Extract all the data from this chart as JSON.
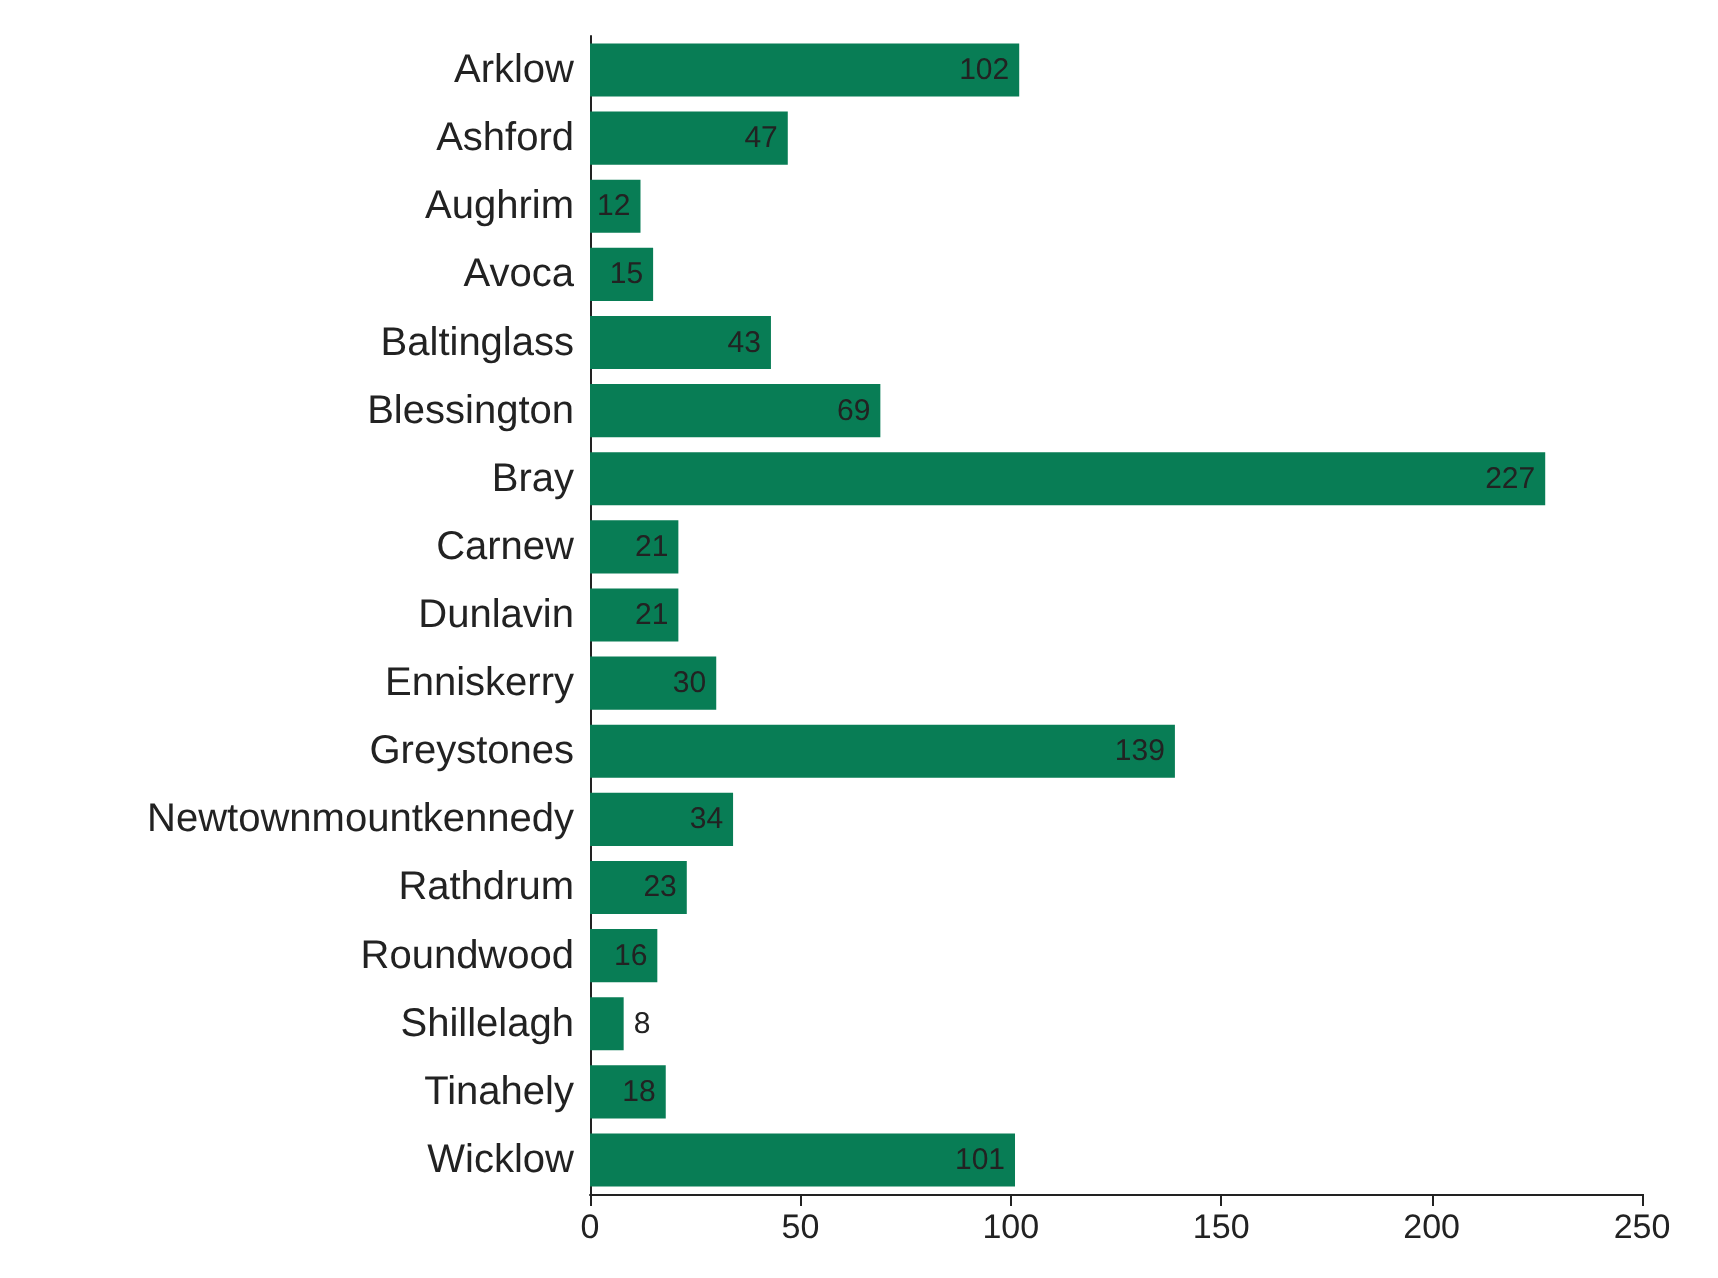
{
  "chart_data": {
    "type": "bar",
    "orientation": "horizontal",
    "categories": [
      "Arklow",
      "Ashford",
      "Aughrim",
      "Avoca",
      "Baltinglass",
      "Blessington",
      "Bray",
      "Carnew",
      "Dunlavin",
      "Enniskerry",
      "Greystones",
      "Newtownmountkennedy",
      "Rathdrum",
      "Roundwood",
      "Shillelagh",
      "Tinahely",
      "Wicklow"
    ],
    "values": [
      102,
      47,
      12,
      15,
      43,
      69,
      227,
      21,
      21,
      30,
      139,
      34,
      23,
      16,
      8,
      18,
      101
    ],
    "color": "#087d55",
    "data_labels": true,
    "xlim": [
      0,
      250
    ],
    "xticks": [
      0,
      50,
      100,
      150,
      200,
      250
    ],
    "grid": false
  }
}
